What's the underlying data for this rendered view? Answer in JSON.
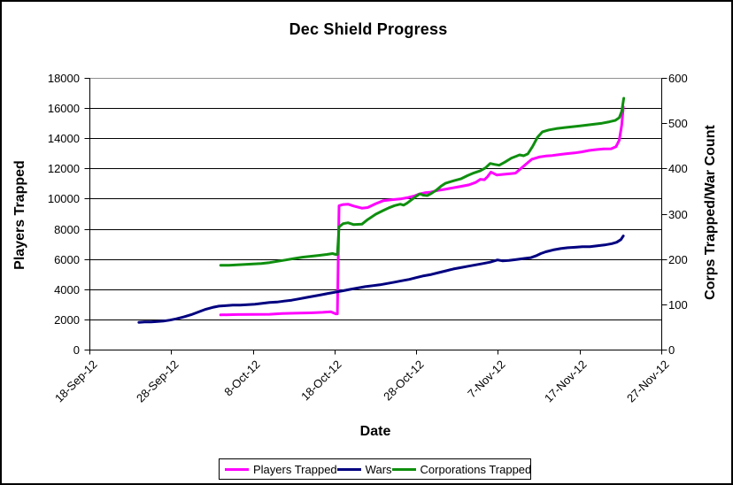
{
  "title": "Dec Shield Progress",
  "axes": {
    "left": {
      "title": "Players Trapped",
      "tick_values": [
        0,
        2000,
        4000,
        6000,
        8000,
        10000,
        12000,
        14000,
        16000,
        18000
      ],
      "tick_labels": [
        "0",
        "2000",
        "4000",
        "6000",
        "8000",
        "10000",
        "12000",
        "14000",
        "16000",
        "18000"
      ]
    },
    "right": {
      "title": "Corps Trapped/War Count",
      "tick_values": [
        0,
        100,
        200,
        300,
        400,
        500,
        600
      ],
      "tick_labels": [
        "0",
        "100",
        "200",
        "300",
        "400",
        "500",
        "600"
      ]
    },
    "x": {
      "title": "Date",
      "tick_days": [
        0,
        10,
        20,
        30,
        40,
        50,
        60,
        70
      ],
      "tick_labels": [
        "18-Sep-12",
        "28-Sep-12",
        "8-Oct-12",
        "18-Oct-12",
        "28-Oct-12",
        "7-Nov-12",
        "17-Nov-12",
        "27-Nov-12"
      ]
    }
  },
  "legend": {
    "items": [
      {
        "label": "Players Trapped",
        "color": "#FF00FF"
      },
      {
        "label": "Wars",
        "color": "#000080"
      },
      {
        "label": "Corporations Trapped",
        "color": "#0F8F0F"
      }
    ]
  },
  "chart_data": {
    "type": "line",
    "title": "Dec Shield Progress",
    "xlabel": "Date",
    "ylabel_left": "Players Trapped",
    "ylabel_right": "Corps Trapped/War Count",
    "x_unit": "days since 18-Sep-12",
    "xlim_days": [
      0,
      70
    ],
    "ylim_left": [
      0,
      18000
    ],
    "ylim_right": [
      0,
      600
    ],
    "grid": true,
    "grid_color": "#000000",
    "top_border_color": "#909090",
    "legend_position": "bottom",
    "x_tick_labels": [
      "18-Sep-12",
      "28-Sep-12",
      "8-Oct-12",
      "18-Oct-12",
      "28-Oct-12",
      "7-Nov-12",
      "17-Nov-12",
      "27-Nov-12"
    ],
    "series": [
      {
        "name": "Players Trapped",
        "axis": "left",
        "color": "#FF00FF",
        "points": [
          [
            16,
            2330
          ],
          [
            18,
            2350
          ],
          [
            20,
            2360
          ],
          [
            22,
            2370
          ],
          [
            23.5,
            2420
          ],
          [
            25,
            2440
          ],
          [
            27,
            2460
          ],
          [
            28.5,
            2500
          ],
          [
            29.5,
            2540
          ],
          [
            30.1,
            2400
          ],
          [
            30.3,
            2400
          ],
          [
            30.5,
            9560
          ],
          [
            31,
            9640
          ],
          [
            31.6,
            9660
          ],
          [
            32.3,
            9540
          ],
          [
            33.3,
            9400
          ],
          [
            34,
            9440
          ],
          [
            35,
            9700
          ],
          [
            35.9,
            9890
          ],
          [
            37,
            9960
          ],
          [
            38,
            10010
          ],
          [
            39,
            10110
          ],
          [
            39.7,
            10200
          ],
          [
            40.3,
            10330
          ],
          [
            41,
            10420
          ],
          [
            41.6,
            10450
          ],
          [
            42.6,
            10570
          ],
          [
            43.4,
            10640
          ],
          [
            44.4,
            10740
          ],
          [
            45.4,
            10840
          ],
          [
            46.4,
            10940
          ],
          [
            47.2,
            11100
          ],
          [
            47.8,
            11310
          ],
          [
            48.3,
            11280
          ],
          [
            48.7,
            11500
          ],
          [
            49.1,
            11790
          ],
          [
            49.8,
            11600
          ],
          [
            50.6,
            11640
          ],
          [
            51.6,
            11690
          ],
          [
            52.1,
            11720
          ],
          [
            52.6,
            11950
          ],
          [
            53.3,
            12280
          ],
          [
            54.1,
            12640
          ],
          [
            55,
            12790
          ],
          [
            55.8,
            12850
          ],
          [
            56.6,
            12890
          ],
          [
            57.5,
            12950
          ],
          [
            58.4,
            13010
          ],
          [
            59.3,
            13060
          ],
          [
            60.2,
            13130
          ],
          [
            61.1,
            13220
          ],
          [
            62,
            13280
          ],
          [
            62.9,
            13320
          ],
          [
            63.8,
            13330
          ],
          [
            64.4,
            13470
          ],
          [
            64.8,
            13900
          ],
          [
            65.1,
            14900
          ],
          [
            65.3,
            16100
          ]
        ]
      },
      {
        "name": "Wars",
        "axis": "right",
        "color": "#000080",
        "points": [
          [
            6,
            61
          ],
          [
            6.7,
            62
          ],
          [
            7.5,
            62
          ],
          [
            8.3,
            63
          ],
          [
            9,
            64
          ],
          [
            9.8,
            66
          ],
          [
            10.6,
            69
          ],
          [
            11.5,
            73
          ],
          [
            12.4,
            78
          ],
          [
            13.3,
            84
          ],
          [
            14.2,
            90
          ],
          [
            15,
            94
          ],
          [
            15.8,
            97
          ],
          [
            16.6,
            98
          ],
          [
            17.5,
            99
          ],
          [
            18.4,
            99
          ],
          [
            19.3,
            100
          ],
          [
            20.2,
            101
          ],
          [
            21.1,
            103
          ],
          [
            22,
            105
          ],
          [
            22.9,
            106
          ],
          [
            23.8,
            108
          ],
          [
            24.7,
            110
          ],
          [
            25.6,
            113
          ],
          [
            26.5,
            116
          ],
          [
            27.4,
            119
          ],
          [
            28.3,
            122
          ],
          [
            29.2,
            125
          ],
          [
            30.1,
            128
          ],
          [
            31,
            131
          ],
          [
            31.9,
            134
          ],
          [
            32.8,
            137
          ],
          [
            33.7,
            140
          ],
          [
            34.6,
            142
          ],
          [
            35.5,
            144
          ],
          [
            36.4,
            147
          ],
          [
            37.3,
            150
          ],
          [
            38.2,
            153
          ],
          [
            39.1,
            156
          ],
          [
            40,
            160
          ],
          [
            40.9,
            164
          ],
          [
            41.8,
            167
          ],
          [
            42.7,
            171
          ],
          [
            43.6,
            175
          ],
          [
            44.5,
            179
          ],
          [
            45.4,
            182
          ],
          [
            46.3,
            185
          ],
          [
            47.2,
            188
          ],
          [
            48.1,
            191
          ],
          [
            49,
            194
          ],
          [
            49.9,
            199
          ],
          [
            50.5,
            197
          ],
          [
            51.3,
            198
          ],
          [
            52.2,
            200
          ],
          [
            53.1,
            202
          ],
          [
            54,
            204
          ],
          [
            54.6,
            208
          ],
          [
            55.2,
            213
          ],
          [
            55.8,
            217
          ],
          [
            56.7,
            221
          ],
          [
            57.6,
            224
          ],
          [
            58.5,
            226
          ],
          [
            59.4,
            227
          ],
          [
            60.3,
            228
          ],
          [
            61.2,
            228
          ],
          [
            62.1,
            230
          ],
          [
            63,
            232
          ],
          [
            63.9,
            235
          ],
          [
            64.5,
            238
          ],
          [
            65,
            244
          ],
          [
            65.3,
            252
          ]
        ]
      },
      {
        "name": "Corporations Trapped",
        "axis": "right",
        "color": "#0F8F0F",
        "points": [
          [
            16,
            187
          ],
          [
            17,
            187
          ],
          [
            18,
            188
          ],
          [
            19,
            189
          ],
          [
            20,
            190
          ],
          [
            21,
            191
          ],
          [
            22,
            193
          ],
          [
            23,
            196
          ],
          [
            24,
            199
          ],
          [
            25,
            202
          ],
          [
            26,
            205
          ],
          [
            27,
            207
          ],
          [
            28,
            209
          ],
          [
            29,
            211
          ],
          [
            29.7,
            213
          ],
          [
            30.1,
            211
          ],
          [
            30.3,
            211
          ],
          [
            30.5,
            272
          ],
          [
            31,
            279
          ],
          [
            31.6,
            281
          ],
          [
            32.3,
            277
          ],
          [
            33.3,
            278
          ],
          [
            34,
            288
          ],
          [
            35,
            300
          ],
          [
            35.9,
            308
          ],
          [
            36.6,
            314
          ],
          [
            37.3,
            319
          ],
          [
            38,
            322
          ],
          [
            38.4,
            320
          ],
          [
            38.8,
            324
          ],
          [
            39.4,
            332
          ],
          [
            40,
            340
          ],
          [
            40.4,
            345
          ],
          [
            40.8,
            342
          ],
          [
            41.3,
            341
          ],
          [
            41.8,
            346
          ],
          [
            42.4,
            353
          ],
          [
            43,
            362
          ],
          [
            43.5,
            368
          ],
          [
            44,
            371
          ],
          [
            44.6,
            374
          ],
          [
            45.4,
            378
          ],
          [
            46.2,
            385
          ],
          [
            47,
            391
          ],
          [
            47.8,
            396
          ],
          [
            48.4,
            402
          ],
          [
            49,
            412
          ],
          [
            49.5,
            410
          ],
          [
            50.1,
            408
          ],
          [
            50.8,
            415
          ],
          [
            51.6,
            424
          ],
          [
            52.2,
            428
          ],
          [
            52.6,
            431
          ],
          [
            53.1,
            429
          ],
          [
            53.6,
            433
          ],
          [
            54.2,
            450
          ],
          [
            54.8,
            470
          ],
          [
            55.4,
            482
          ],
          [
            56.2,
            486
          ],
          [
            57.1,
            489
          ],
          [
            58,
            491
          ],
          [
            59,
            493
          ],
          [
            60,
            495
          ],
          [
            60.9,
            497
          ],
          [
            61.8,
            499
          ],
          [
            62.7,
            501
          ],
          [
            63.6,
            504
          ],
          [
            64.3,
            507
          ],
          [
            64.8,
            513
          ],
          [
            65.1,
            527
          ],
          [
            65.35,
            556
          ]
        ]
      }
    ]
  }
}
